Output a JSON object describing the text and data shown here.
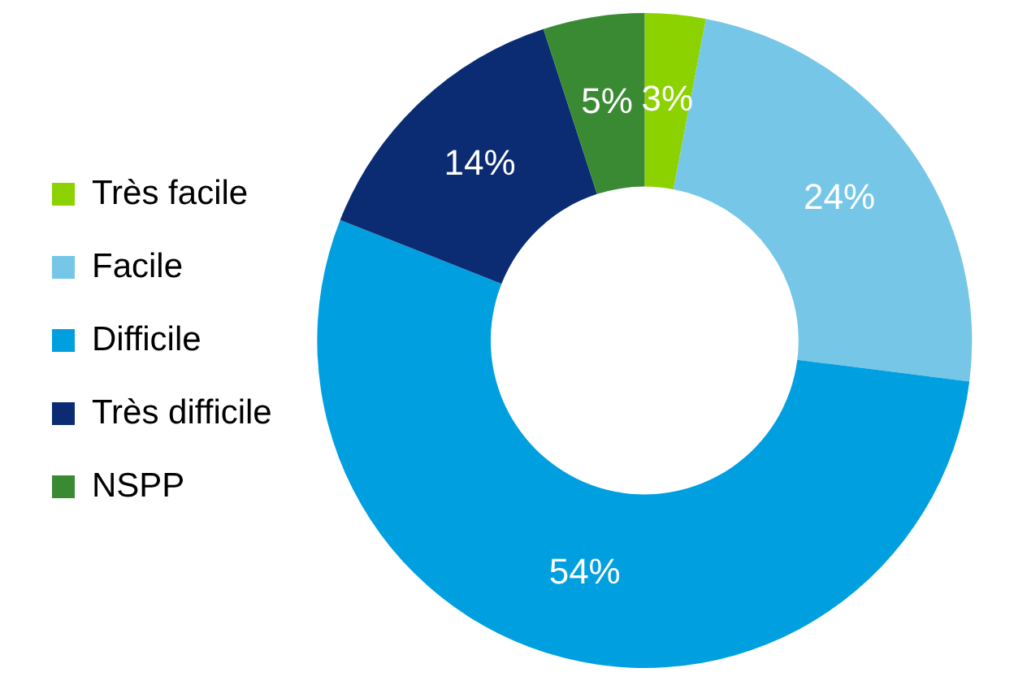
{
  "chart_data": {
    "type": "donut",
    "categories": [
      "Très facile",
      "Facile",
      "Difficile",
      "Très difficile",
      "NSPP"
    ],
    "values": [
      3,
      24,
      54,
      14,
      5
    ],
    "value_labels": [
      "3%",
      "24%",
      "54%",
      "14%",
      "5%"
    ],
    "colors": [
      "#8cd200",
      "#76c6e8",
      "#00a0e0",
      "#0b2c73",
      "#3a8a34"
    ],
    "legend": "left"
  }
}
